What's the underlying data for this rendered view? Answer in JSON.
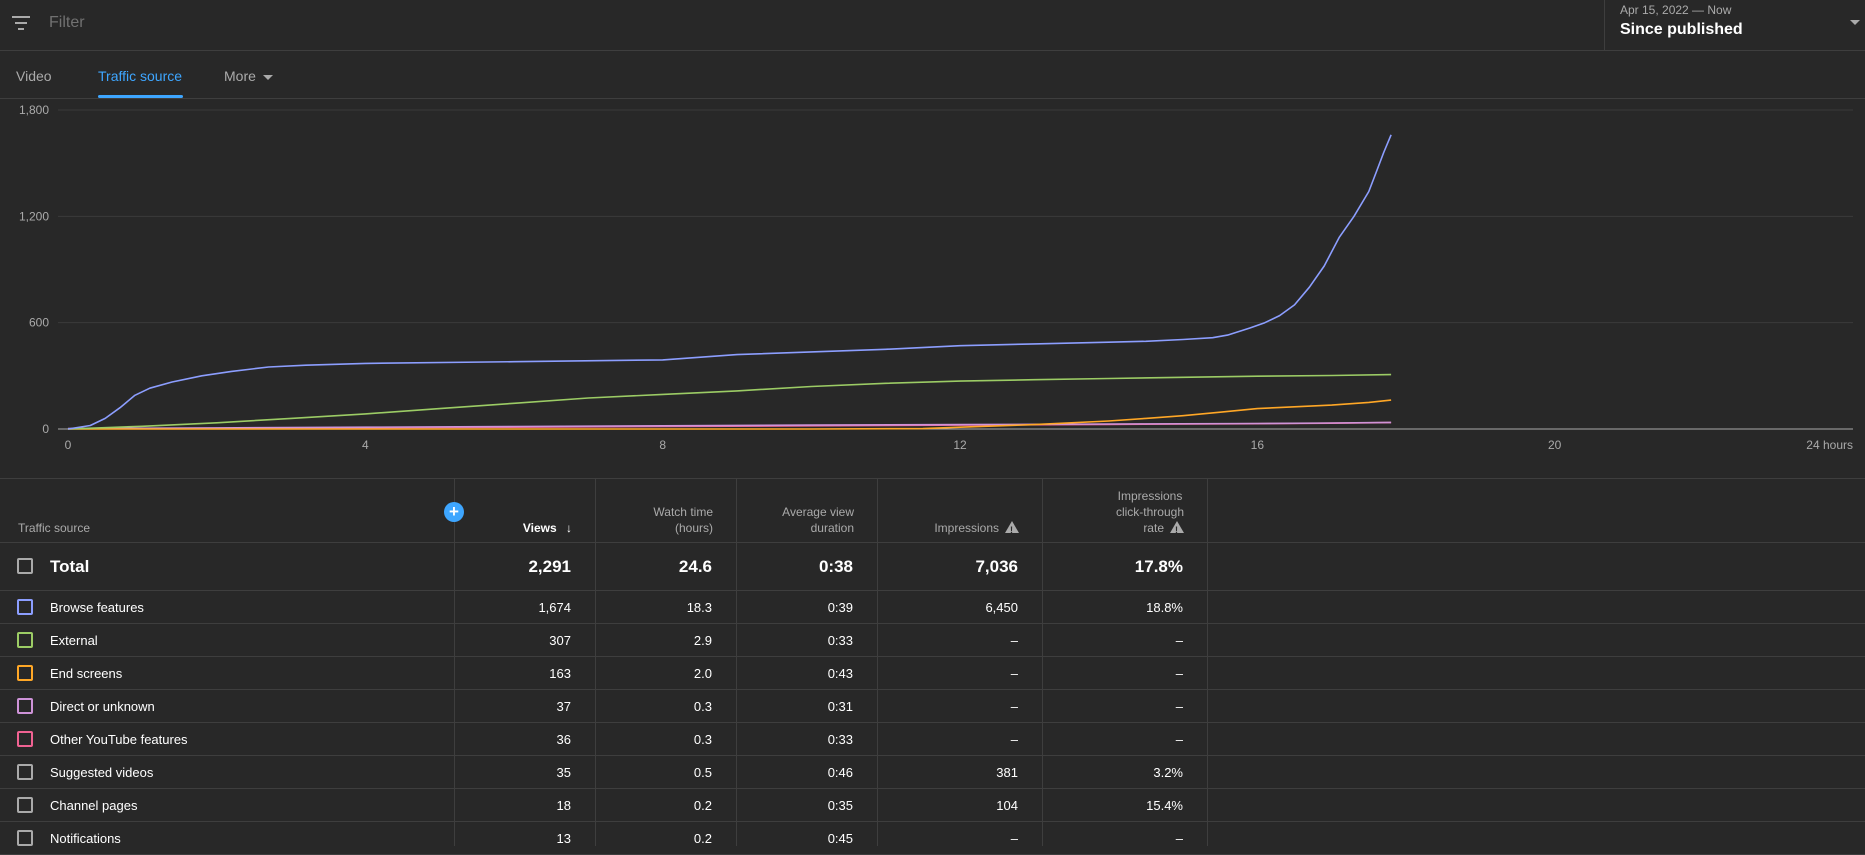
{
  "filter": {
    "placeholder": "Filter"
  },
  "date_picker": {
    "range": "Apr 15, 2022 — Now",
    "title": "Since published"
  },
  "tabs": [
    {
      "label": "Video",
      "active": false
    },
    {
      "label": "Traffic source",
      "active": true
    },
    {
      "label": "More",
      "active": false
    }
  ],
  "chart_data": {
    "type": "line",
    "title": "",
    "xlabel": "",
    "ylabel": "",
    "x_ticks": [
      "0",
      "4",
      "8",
      "12",
      "16",
      "20",
      "24 hours"
    ],
    "y_ticks": [
      "0",
      "600",
      "1,200",
      "1,800"
    ],
    "xlim": [
      0,
      24
    ],
    "ylim": [
      0,
      1800
    ],
    "grid": true,
    "series": [
      {
        "name": "Browse features",
        "color": "#8c9eff",
        "x": [
          0,
          0.3,
          0.5,
          0.7,
          0.9,
          1.1,
          1.4,
          1.8,
          2.2,
          2.7,
          3.2,
          4,
          6,
          8,
          9,
          10,
          11,
          12,
          13,
          14,
          14.5,
          15,
          15.4,
          15.6,
          15.9,
          16.1,
          16.3,
          16.5,
          16.7,
          16.9,
          17.1,
          17.3,
          17.5,
          17.6,
          17.7,
          17.8
        ],
        "y": [
          0,
          20,
          60,
          120,
          190,
          230,
          265,
          300,
          325,
          350,
          360,
          370,
          380,
          390,
          420,
          435,
          450,
          470,
          480,
          490,
          495,
          505,
          515,
          530,
          570,
          600,
          640,
          700,
          800,
          920,
          1080,
          1200,
          1340,
          1450,
          1560,
          1660
        ]
      },
      {
        "name": "External",
        "color": "#9ccc65",
        "x": [
          0,
          1,
          2,
          3,
          4,
          5,
          6,
          7,
          8,
          9,
          10,
          11,
          12,
          13,
          14,
          15,
          16,
          17,
          17.8
        ],
        "y": [
          0,
          15,
          35,
          60,
          85,
          115,
          145,
          175,
          195,
          215,
          240,
          258,
          270,
          278,
          285,
          292,
          298,
          302,
          307
        ]
      },
      {
        "name": "End screens",
        "color": "#ffa726",
        "x": [
          0,
          10,
          11.5,
          12,
          13,
          14,
          14.5,
          15,
          15.5,
          16,
          16.5,
          17,
          17.5,
          17.8
        ],
        "y": [
          0,
          0,
          2,
          10,
          25,
          45,
          60,
          75,
          95,
          115,
          125,
          135,
          150,
          163
        ]
      },
      {
        "name": "Direct or unknown",
        "color": "#ce93d8",
        "x": [
          0,
          2,
          4,
          6,
          8,
          10,
          12,
          14,
          16,
          17,
          17.8
        ],
        "y": [
          2,
          6,
          10,
          14,
          18,
          22,
          25,
          28,
          31,
          34,
          37
        ]
      },
      {
        "name": "Other YouTube features",
        "color": "#f06292",
        "x": [
          0,
          2,
          4,
          6,
          8,
          10,
          12,
          14,
          16,
          17,
          17.8
        ],
        "y": [
          1,
          4,
          7,
          10,
          14,
          18,
          22,
          26,
          30,
          33,
          36
        ]
      }
    ]
  },
  "table": {
    "headers": {
      "source": "Traffic source",
      "views": "Views",
      "watch_time": [
        "Watch time",
        "(hours)"
      ],
      "avg_duration": [
        "Average view",
        "duration"
      ],
      "impressions": "Impressions",
      "ctr": [
        "Impressions",
        "click-through",
        "rate"
      ]
    },
    "total": {
      "label": "Total",
      "views": "2,291",
      "watch_time": "24.6",
      "avg_duration": "0:38",
      "impressions": "7,036",
      "ctr": "17.8%"
    },
    "rows": [
      {
        "label": "Browse features",
        "color": "#8c9eff",
        "views": "1,674",
        "watch_time": "18.3",
        "avg_duration": "0:39",
        "impressions": "6,450",
        "ctr": "18.8%"
      },
      {
        "label": "External",
        "color": "#9ccc65",
        "views": "307",
        "watch_time": "2.9",
        "avg_duration": "0:33",
        "impressions": "–",
        "ctr": "–"
      },
      {
        "label": "End screens",
        "color": "#ffa726",
        "views": "163",
        "watch_time": "2.0",
        "avg_duration": "0:43",
        "impressions": "–",
        "ctr": "–"
      },
      {
        "label": "Direct or unknown",
        "color": "#ce93d8",
        "views": "37",
        "watch_time": "0.3",
        "avg_duration": "0:31",
        "impressions": "–",
        "ctr": "–"
      },
      {
        "label": "Other YouTube features",
        "color": "#f06292",
        "views": "36",
        "watch_time": "0.3",
        "avg_duration": "0:33",
        "impressions": "–",
        "ctr": "–"
      },
      {
        "label": "Suggested videos",
        "color": "#aaaaaa",
        "views": "35",
        "watch_time": "0.5",
        "avg_duration": "0:46",
        "impressions": "381",
        "ctr": "3.2%"
      },
      {
        "label": "Channel pages",
        "color": "#aaaaaa",
        "views": "18",
        "watch_time": "0.2",
        "avg_duration": "0:35",
        "impressions": "104",
        "ctr": "15.4%"
      },
      {
        "label": "Notifications",
        "color": "#aaaaaa",
        "views": "13",
        "watch_time": "0.2",
        "avg_duration": "0:45",
        "impressions": "–",
        "ctr": "–"
      }
    ]
  }
}
